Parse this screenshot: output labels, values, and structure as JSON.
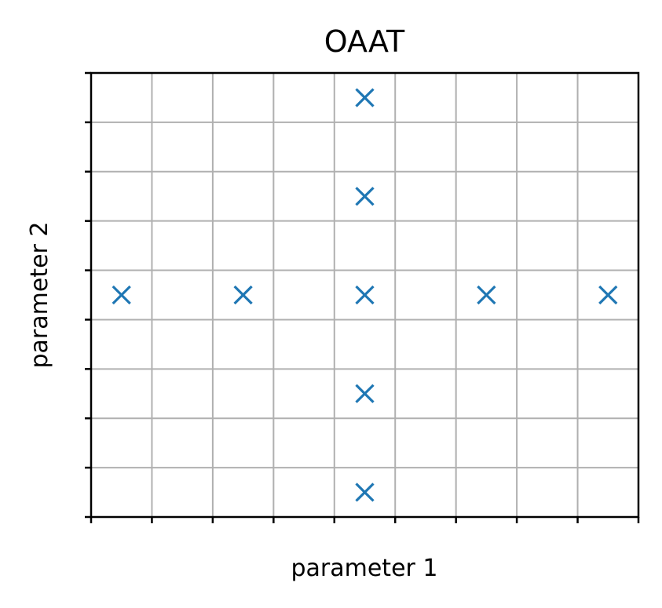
{
  "chart_data": {
    "type": "scatter",
    "title": "OAAT",
    "xlabel": "parameter 1",
    "ylabel": "parameter 2",
    "xlim": [
      0,
      9
    ],
    "ylim": [
      0,
      9
    ],
    "x_ticks": [
      0,
      1,
      2,
      3,
      4,
      5,
      6,
      7,
      8,
      9
    ],
    "y_ticks": [
      0,
      1,
      2,
      3,
      4,
      5,
      6,
      7,
      8,
      9
    ],
    "tick_labels_visible": false,
    "grid": true,
    "marker": "x",
    "marker_color": "#1f77b4",
    "grid_color": "#b0b0b0",
    "points": [
      {
        "x": 4.5,
        "y": 8.5
      },
      {
        "x": 4.5,
        "y": 6.5
      },
      {
        "x": 0.5,
        "y": 4.5
      },
      {
        "x": 2.5,
        "y": 4.5
      },
      {
        "x": 4.5,
        "y": 4.5
      },
      {
        "x": 6.5,
        "y": 4.5
      },
      {
        "x": 8.5,
        "y": 4.5
      },
      {
        "x": 4.5,
        "y": 2.5
      },
      {
        "x": 4.5,
        "y": 0.5
      }
    ]
  }
}
